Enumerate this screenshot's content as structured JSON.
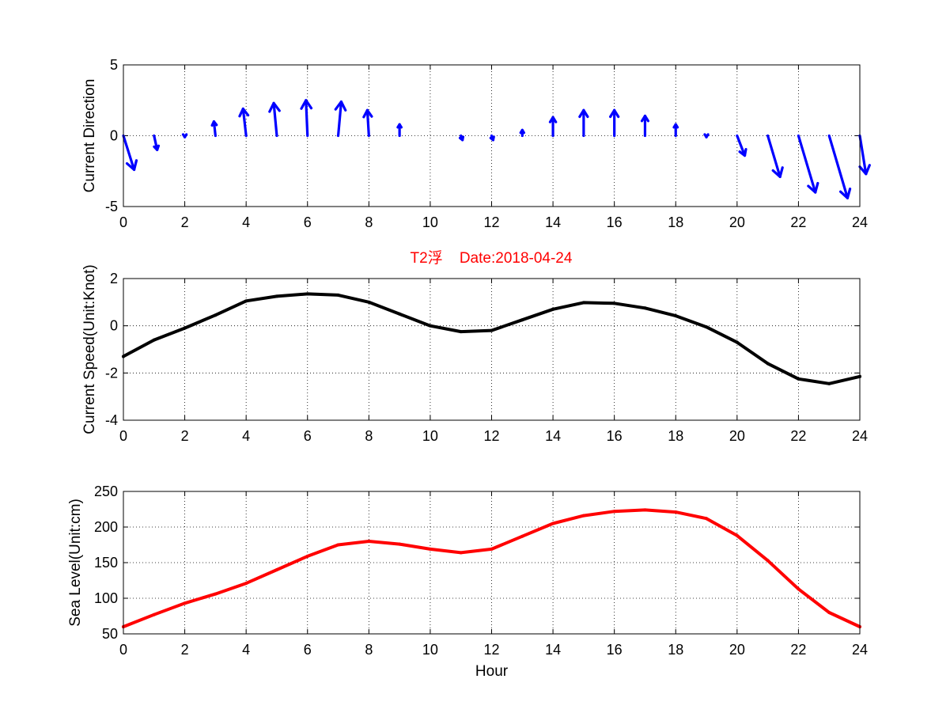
{
  "figure": {
    "title": "T2浮    Date:2018-04-24",
    "title_color": "#ff0000"
  },
  "chart_data": [
    {
      "type": "quiver",
      "ylabel": "Current Direction",
      "xlabel": "",
      "xlim": [
        0,
        24
      ],
      "ylim": [
        -5,
        5
      ],
      "xticks": [
        "0",
        "2",
        "4",
        "6",
        "8",
        "10",
        "12",
        "14",
        "16",
        "18",
        "20",
        "22",
        "24"
      ],
      "yticks": [
        "5",
        "0",
        "-5"
      ],
      "grid": true,
      "color": "#0000ff",
      "arrows": [
        {
          "x": 0,
          "u": 0.35,
          "v": -2.4
        },
        {
          "x": 1,
          "u": 0.1,
          "v": -1.0
        },
        {
          "x": 2,
          "u": 0.0,
          "v": -0.1
        },
        {
          "x": 3,
          "u": -0.05,
          "v": 1.0
        },
        {
          "x": 4,
          "u": -0.1,
          "v": 1.9
        },
        {
          "x": 5,
          "u": -0.1,
          "v": 2.3
        },
        {
          "x": 6,
          "u": -0.05,
          "v": 2.5
        },
        {
          "x": 7,
          "u": 0.1,
          "v": 2.4
        },
        {
          "x": 8,
          "u": -0.05,
          "v": 1.8
        },
        {
          "x": 9,
          "u": 0.0,
          "v": 0.8
        },
        {
          "x": 10,
          "u": 0.0,
          "v": 0.0
        },
        {
          "x": 11,
          "u": 0.05,
          "v": -0.3
        },
        {
          "x": 12,
          "u": 0.05,
          "v": -0.3
        },
        {
          "x": 13,
          "u": 0.0,
          "v": 0.4
        },
        {
          "x": 14,
          "u": 0.0,
          "v": 1.3
        },
        {
          "x": 15,
          "u": 0.0,
          "v": 1.8
        },
        {
          "x": 16,
          "u": 0.0,
          "v": 1.8
        },
        {
          "x": 17,
          "u": 0.0,
          "v": 1.4
        },
        {
          "x": 18,
          "u": 0.0,
          "v": 0.8
        },
        {
          "x": 19,
          "u": 0.0,
          "v": -0.1
        },
        {
          "x": 20,
          "u": 0.25,
          "v": -1.4
        },
        {
          "x": 21,
          "u": 0.4,
          "v": -2.9
        },
        {
          "x": 22,
          "u": 0.55,
          "v": -4.0
        },
        {
          "x": 23,
          "u": 0.6,
          "v": -4.4
        },
        {
          "x": 24,
          "u": 0.2,
          "v": -2.7
        }
      ]
    },
    {
      "type": "line",
      "ylabel": "Current Speed(Unit:Knot)",
      "xlabel": "",
      "xlim": [
        0,
        24
      ],
      "ylim": [
        -4,
        2
      ],
      "xticks": [
        "0",
        "2",
        "4",
        "6",
        "8",
        "10",
        "12",
        "14",
        "16",
        "18",
        "20",
        "22",
        "24"
      ],
      "yticks": [
        "2",
        "0",
        "-2",
        "-4"
      ],
      "grid": true,
      "color": "#000000",
      "x": [
        0,
        1,
        2,
        3,
        4,
        5,
        6,
        7,
        8,
        9,
        10,
        11,
        12,
        13,
        14,
        15,
        16,
        17,
        18,
        19,
        20,
        21,
        22,
        23,
        24
      ],
      "values": [
        -1.3,
        -0.6,
        -0.1,
        0.45,
        1.05,
        1.25,
        1.35,
        1.3,
        1.0,
        0.5,
        0.0,
        -0.25,
        -0.2,
        0.25,
        0.7,
        0.98,
        0.95,
        0.75,
        0.42,
        -0.05,
        -0.7,
        -1.6,
        -2.25,
        -2.45,
        -2.15
      ]
    },
    {
      "type": "line",
      "ylabel": "Sea Level(Unit:cm)",
      "xlabel": "Hour",
      "xlim": [
        0,
        24
      ],
      "ylim": [
        50,
        250
      ],
      "xticks": [
        "0",
        "2",
        "4",
        "6",
        "8",
        "10",
        "12",
        "14",
        "16",
        "18",
        "20",
        "22",
        "24"
      ],
      "yticks": [
        "250",
        "200",
        "150",
        "100",
        "50"
      ],
      "grid": true,
      "color": "#ff0000",
      "x": [
        0,
        1,
        2,
        3,
        4,
        5,
        6,
        7,
        8,
        9,
        10,
        11,
        12,
        13,
        14,
        15,
        16,
        17,
        18,
        19,
        20,
        21,
        22,
        23,
        24
      ],
      "values": [
        60,
        77,
        93,
        106,
        121,
        140,
        159,
        175,
        180,
        176,
        169,
        164,
        169,
        187,
        205,
        216,
        222,
        224,
        221,
        212,
        188,
        153,
        113,
        80,
        60
      ]
    }
  ]
}
